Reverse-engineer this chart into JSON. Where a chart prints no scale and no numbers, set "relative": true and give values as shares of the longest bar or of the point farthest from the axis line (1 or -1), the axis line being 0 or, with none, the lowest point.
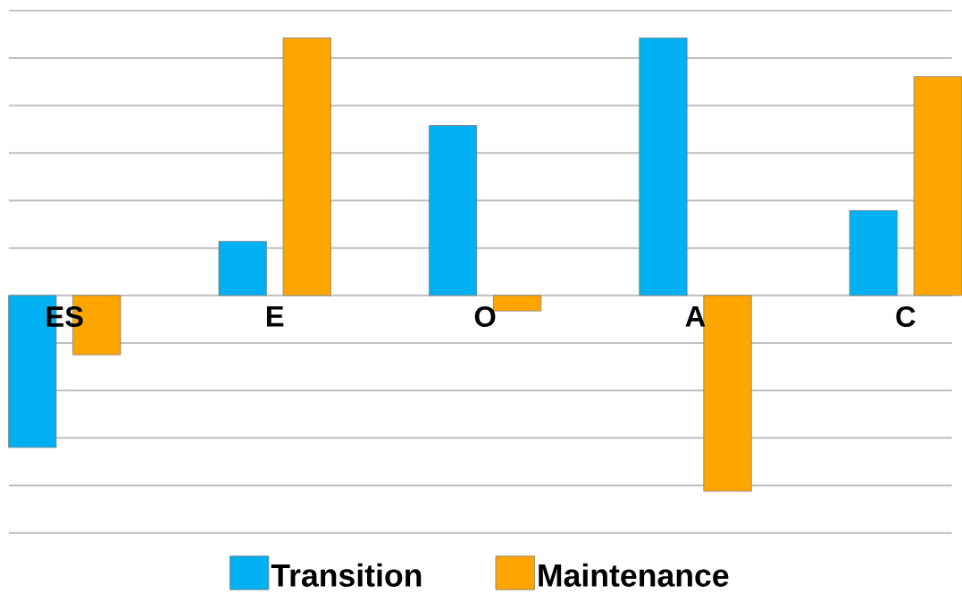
{
  "chart_data": {
    "type": "bar",
    "relative": true,
    "categories": [
      "ES",
      "E",
      "O",
      "A",
      "C"
    ],
    "series": [
      {
        "name": "Transition",
        "color": "#00b0f0",
        "values": [
          -0.59,
          0.21,
          0.66,
          1,
          0.33
        ]
      },
      {
        "name": "Maintenance",
        "color": "#ffa500",
        "values": [
          -0.23,
          1,
          -0.06,
          -0.76,
          0.85
        ]
      }
    ],
    "grid": "y",
    "legend": "bottom"
  }
}
